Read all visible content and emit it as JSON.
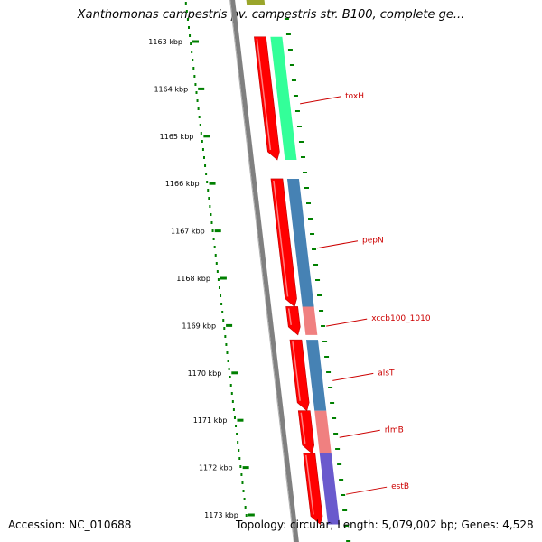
{
  "title": "Xanthomonas campestris pv. campestris str. B100, complete ge...",
  "footer": {
    "accession": "Accession: NC_010688",
    "topology": "Topology: circular; Length: 5,079,002 bp; Genes: 4,528"
  },
  "colors": {
    "forward_gene": "#ff0000",
    "backbone": "#808080",
    "tick": "#008000",
    "label": "#cc0000",
    "cog_green": "#33ff99",
    "cog_steelblue": "#4682b4",
    "cog_pink": "#f08080",
    "cog_slateblue": "#6a5acd",
    "cog_olive": "#9aa52b"
  },
  "ticks": [
    {
      "kbp": 1163,
      "label": "1163 kbp"
    },
    {
      "kbp": 1164,
      "label": "1164 kbp"
    },
    {
      "kbp": 1165,
      "label": "1165 kbp"
    },
    {
      "kbp": 1166,
      "label": "1166 kbp"
    },
    {
      "kbp": 1167,
      "label": "1167 kbp"
    },
    {
      "kbp": 1168,
      "label": "1168 kbp"
    },
    {
      "kbp": 1169,
      "label": "1169 kbp"
    },
    {
      "kbp": 1170,
      "label": "1170 kbp"
    },
    {
      "kbp": 1171,
      "label": "1171 kbp"
    },
    {
      "kbp": 1172,
      "label": "1172 kbp"
    },
    {
      "kbp": 1173,
      "label": "1173 kbp"
    }
  ],
  "genes": [
    {
      "name": "toxH",
      "start_kbp": 1162.9,
      "end_kbp": 1165.5,
      "cog_color": "#33ff99"
    },
    {
      "name": "pepN",
      "start_kbp": 1165.9,
      "end_kbp": 1168.6,
      "cog_color": "#4682b4"
    },
    {
      "name": "xccb100_1010",
      "start_kbp": 1168.6,
      "end_kbp": 1169.2,
      "cog_color": "#f08080"
    },
    {
      "name": "alsT",
      "start_kbp": 1169.3,
      "end_kbp": 1170.8,
      "cog_color": "#4682b4"
    },
    {
      "name": "rlmB",
      "start_kbp": 1170.8,
      "end_kbp": 1171.7,
      "cog_color": "#f08080"
    },
    {
      "name": "estB",
      "start_kbp": 1171.7,
      "end_kbp": 1173.2,
      "cog_color": "#6a5acd"
    }
  ]
}
